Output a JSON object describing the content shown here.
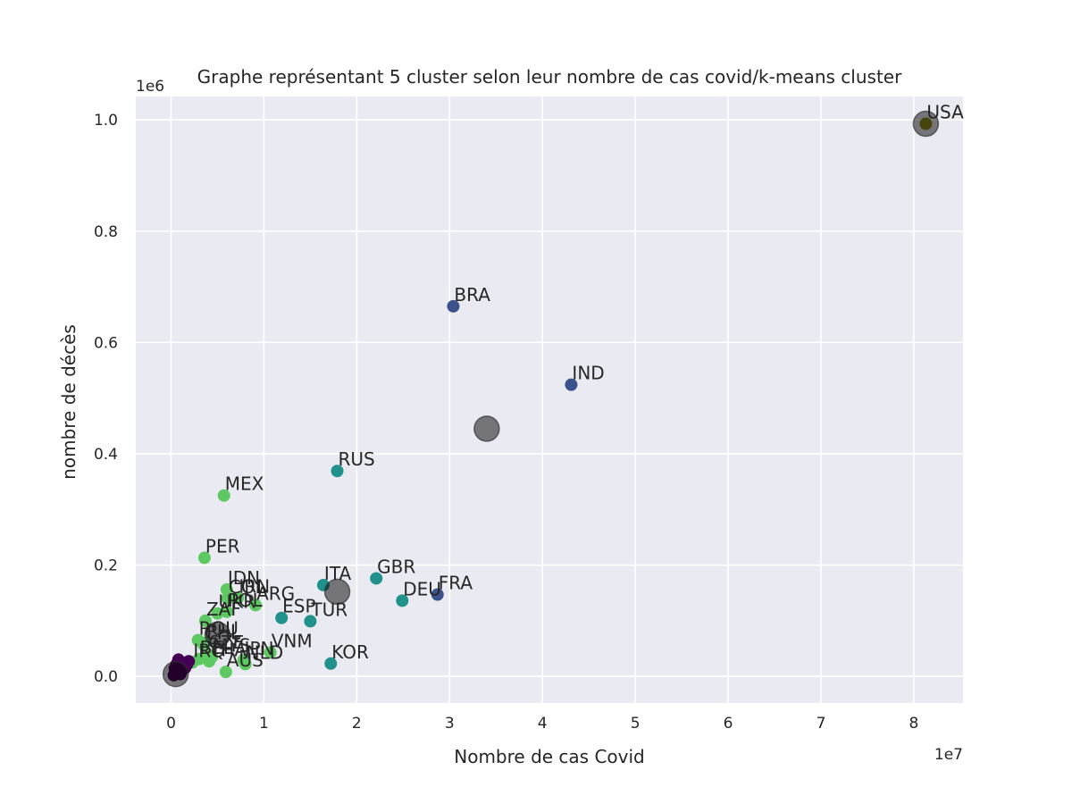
{
  "chart_data": {
    "type": "scatter",
    "title": "Graphe représentant 5 cluster selon leur nombre de cas covid/k-means cluster",
    "xlabel": "Nombre de cas Covid",
    "ylabel": "nombre de décès",
    "x_offset_text": "1e7",
    "y_offset_text": "1e6",
    "xlim": [
      -3800000,
      85300000
    ],
    "ylim": [
      -48000,
      1042000
    ],
    "x_ticks": [
      0,
      10000000,
      20000000,
      30000000,
      40000000,
      50000000,
      60000000,
      70000000,
      80000000
    ],
    "x_tick_labels": [
      "0",
      "1",
      "2",
      "3",
      "4",
      "5",
      "6",
      "7",
      "8"
    ],
    "y_ticks": [
      0,
      200000,
      400000,
      600000,
      800000,
      1000000
    ],
    "y_tick_labels": [
      "0.0",
      "0.2",
      "0.4",
      "0.6",
      "0.8",
      "1.0"
    ],
    "grid": true,
    "background": "#eaeaf2",
    "cluster_colors": [
      "#440154",
      "#3b528b",
      "#21918c",
      "#5ec962",
      "#8c8a1a"
    ],
    "points": [
      {
        "label": "USA",
        "x": 81300000,
        "y": 993000,
        "cluster": 4
      },
      {
        "label": "BRA",
        "x": 30400000,
        "y": 665000,
        "cluster": 1
      },
      {
        "label": "IND",
        "x": 43100000,
        "y": 524000,
        "cluster": 1
      },
      {
        "label": "FRA",
        "x": 28700000,
        "y": 147000,
        "cluster": 1
      },
      {
        "label": "RUS",
        "x": 17900000,
        "y": 369000,
        "cluster": 2
      },
      {
        "label": "GBR",
        "x": 22100000,
        "y": 176000,
        "cluster": 2
      },
      {
        "label": "ITA",
        "x": 16400000,
        "y": 164000,
        "cluster": 2
      },
      {
        "label": "DEU",
        "x": 24900000,
        "y": 136000,
        "cluster": 2
      },
      {
        "label": "ESP",
        "x": 11900000,
        "y": 105000,
        "cluster": 2
      },
      {
        "label": "TUR",
        "x": 15000000,
        "y": 99000,
        "cluster": 2
      },
      {
        "label": "KOR",
        "x": 17200000,
        "y": 23000,
        "cluster": 2
      },
      {
        "label": "MEX",
        "x": 5700000,
        "y": 325000,
        "cluster": 3
      },
      {
        "label": "PER",
        "x": 3600000,
        "y": 213000,
        "cluster": 3
      },
      {
        "label": "IDN",
        "x": 6000000,
        "y": 156000,
        "cluster": 3
      },
      {
        "label": "COL",
        "x": 6100000,
        "y": 140000,
        "cluster": 3
      },
      {
        "label": "IRN",
        "x": 7200000,
        "y": 141000,
        "cluster": 3
      },
      {
        "label": "ARG",
        "x": 9100000,
        "y": 128000,
        "cluster": 3
      },
      {
        "label": "UKR",
        "x": 5000000,
        "y": 113000,
        "cluster": 3
      },
      {
        "label": "POL",
        "x": 6000000,
        "y": 116000,
        "cluster": 3
      },
      {
        "label": "ZAF",
        "x": 3700000,
        "y": 100000,
        "cluster": 3
      },
      {
        "label": "ROU",
        "x": 2900000,
        "y": 65000,
        "cluster": 3
      },
      {
        "label": "VNM",
        "x": 10700000,
        "y": 43000,
        "cluster": 3
      },
      {
        "label": "NLD",
        "x": 8000000,
        "y": 22000,
        "cluster": 3
      },
      {
        "label": "JPN",
        "x": 7800000,
        "y": 29000,
        "cluster": 3
      },
      {
        "label": "IRQ",
        "x": 2300000,
        "y": 25000,
        "cluster": 3
      },
      {
        "label": "PHL",
        "x": 3700000,
        "y": 60000,
        "cluster": 3
      },
      {
        "label": "MYS",
        "x": 4400000,
        "y": 35000,
        "cluster": 3
      },
      {
        "label": "THA",
        "x": 4100000,
        "y": 27000,
        "cluster": 3
      },
      {
        "label": "AUS",
        "x": 5900000,
        "y": 8000,
        "cluster": 3
      },
      {
        "label": "BEL",
        "x": 3000000,
        "y": 31000,
        "cluster": 3
      },
      {
        "label": "CZE",
        "x": 3900000,
        "y": 40000,
        "cluster": 3
      },
      {
        "label": "CHL",
        "x": 3500000,
        "y": 57000,
        "cluster": 3
      },
      {
        "label": "",
        "x": 300000,
        "y": 2000,
        "cluster": 0
      },
      {
        "label": "",
        "x": 500000,
        "y": 6000,
        "cluster": 0
      },
      {
        "label": "",
        "x": 700000,
        "y": 12000,
        "cluster": 0
      },
      {
        "label": "",
        "x": 900000,
        "y": 18000,
        "cluster": 0
      },
      {
        "label": "",
        "x": 1100000,
        "y": 9000,
        "cluster": 0
      },
      {
        "label": "",
        "x": 1300000,
        "y": 24000,
        "cluster": 0
      },
      {
        "label": "",
        "x": 1500000,
        "y": 15000,
        "cluster": 0
      },
      {
        "label": "",
        "x": 800000,
        "y": 30000,
        "cluster": 0
      },
      {
        "label": "",
        "x": 1700000,
        "y": 21000,
        "cluster": 0
      },
      {
        "label": "",
        "x": 400000,
        "y": 14000,
        "cluster": 0
      },
      {
        "label": "",
        "x": 1000000,
        "y": 4000,
        "cluster": 0
      },
      {
        "label": "",
        "x": 1900000,
        "y": 27000,
        "cluster": 0
      },
      {
        "label": "",
        "x": 600000,
        "y": 22000,
        "cluster": 0
      }
    ],
    "centroids": [
      {
        "x": 81300000,
        "y": 993000
      },
      {
        "x": 34000000,
        "y": 445000
      },
      {
        "x": 17900000,
        "y": 152000
      },
      {
        "x": 5000000,
        "y": 75000
      },
      {
        "x": 500000,
        "y": 4000
      }
    ]
  }
}
